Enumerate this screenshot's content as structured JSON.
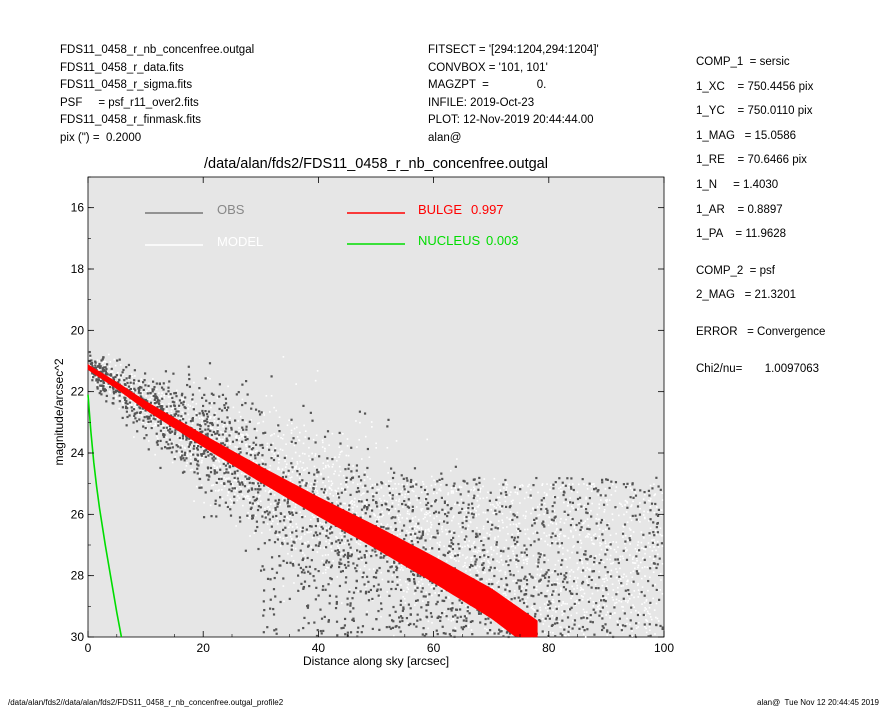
{
  "header_left": [
    "FDS11_0458_r_nb_concenfree.outgal",
    "FDS11_0458_r_data.fits",
    "FDS11_0458_r_sigma.fits",
    "PSF     = psf_r11_over2.fits",
    "FDS11_0458_r_finmask.fits",
    "pix (\") =  0.2000"
  ],
  "header_middle": [
    "FITSECT = '[294:1204,294:1204]'",
    "CONVBOX = '101, 101'",
    "MAGZPT  =               0.",
    "INFILE: 2019-Oct-23",
    "PLOT: 12-Nov-2019 20:44:44.00",
    "alan@"
  ],
  "header_right": {
    "comp1": [
      "COMP_1  = sersic",
      "1_XC    = 750.4456 pix",
      "1_YC    = 750.0110 pix",
      "1_MAG   = 15.0586",
      "1_RE    = 70.6466 pix",
      "1_N     = 1.4030",
      "1_AR    = 0.8897",
      "1_PA    = 11.9628"
    ],
    "comp2": [
      "COMP_2  = psf",
      "2_MAG   = 21.3201"
    ],
    "error": "ERROR   = Convergence",
    "chi2": "Chi2/nu=       1.0097063"
  },
  "footer": {
    "left": "/data/alan/fds2//data/alan/fds2/FDS11_0458_r_nb_concenfree.outgal_profile2",
    "right": "alan@  Tue Nov 12 20:44:45 2019"
  },
  "colors": {
    "plot_bg": "#e6e6e6",
    "obs": "#555555",
    "model": "#ffffff",
    "bulge": "#ff0000",
    "nucleus": "#00dd00"
  },
  "chart_data": {
    "type": "scatter",
    "title": "/data/alan/fds2/FDS11_0458_r_nb_concenfree.outgal",
    "xlabel": "Distance along sky [arcsec]",
    "ylabel": "magnitude/arcsec^2",
    "xlim": [
      0,
      100
    ],
    "ylim": [
      30,
      15
    ],
    "y_inverted": true,
    "grid": false,
    "legend_placement": "top",
    "x_ticks": [
      0,
      20,
      40,
      60,
      80,
      100
    ],
    "y_ticks": [
      16,
      18,
      20,
      22,
      24,
      26,
      28,
      30
    ],
    "series": [
      {
        "name": "OBS",
        "style": "scatter",
        "label": "OBS",
        "value_label": ""
      },
      {
        "name": "MODEL",
        "style": "scatter",
        "label": "MODEL",
        "value_label": ""
      },
      {
        "name": "BULGE",
        "style": "band",
        "label": "BULGE",
        "value_label": "0.997",
        "x": [
          0,
          5,
          10,
          20,
          30,
          40,
          50,
          60,
          70,
          78
        ],
        "y": [
          21.2,
          21.8,
          22.45,
          23.6,
          24.7,
          25.75,
          26.75,
          27.8,
          28.9,
          30.0
        ]
      },
      {
        "name": "NUCLEUS",
        "style": "line",
        "label": "NUCLEUS",
        "value_label": "0.003",
        "x": [
          0,
          0.5,
          1,
          1.5,
          2,
          3,
          4,
          5,
          5.8
        ],
        "y": [
          22.1,
          23.3,
          24.3,
          25.1,
          25.8,
          27.0,
          28.1,
          29.2,
          30.0
        ]
      }
    ]
  }
}
